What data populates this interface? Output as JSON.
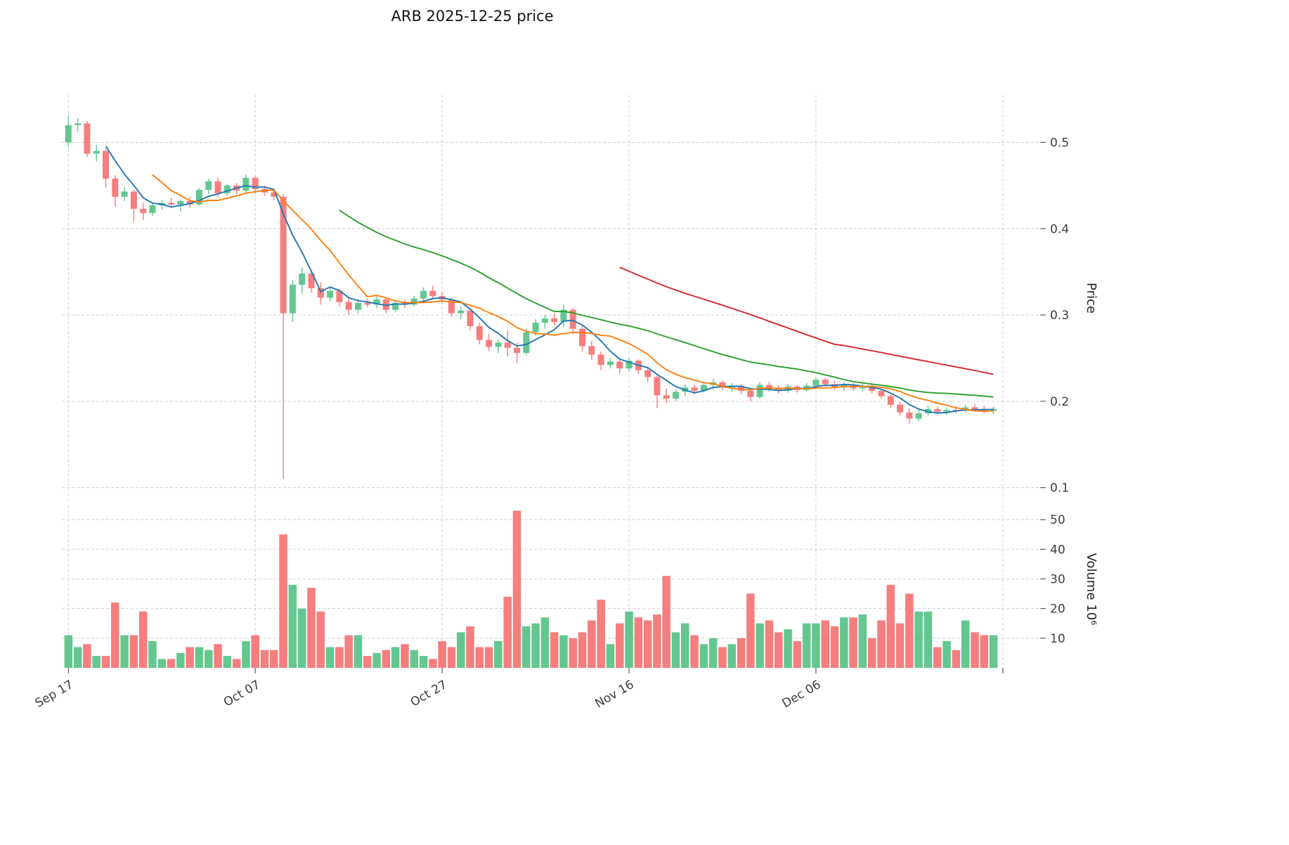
{
  "title": "ARB  2025-12-25  price",
  "colors": {
    "up": "#63c78f",
    "down": "#f57e7e",
    "ma_lines": [
      "#1f77b4",
      "#ff7f0e",
      "#2ca02c",
      "#d62728"
    ],
    "grid": "#cfcfcf"
  },
  "chart_data": {
    "type": "candlestick",
    "title": "ARB  2025-12-25  price",
    "ylabel": "Price",
    "ylabel_volume": "Volume  10⁶",
    "legend": "none",
    "grid": "dashed",
    "price_ylim": [
      0.085,
      0.555
    ],
    "price_ticks": [
      0.1,
      0.2,
      0.3,
      0.4,
      0.5
    ],
    "volume_ylim": [
      0,
      55
    ],
    "volume_ticks": [
      10,
      20,
      30,
      40,
      50
    ],
    "volume_unit": "millions",
    "x_tick_labels": [
      "Sep 17",
      "Oct 07",
      "Oct 27",
      "Nov 16",
      "Dec 06",
      ""
    ],
    "x_tick_indices": [
      0,
      20,
      40,
      60,
      80,
      100
    ],
    "ma_windows": [
      5,
      10,
      30,
      60
    ],
    "open": [
      0.5,
      0.52,
      0.522,
      0.487,
      0.49,
      0.458,
      0.437,
      0.443,
      0.423,
      0.418,
      0.427,
      0.43,
      0.428,
      0.432,
      0.428,
      0.445,
      0.455,
      0.441,
      0.45,
      0.444,
      0.459,
      0.446,
      0.442,
      0.437,
      0.302,
      0.335,
      0.348,
      0.331,
      0.32,
      0.328,
      0.315,
      0.306,
      0.314,
      0.312,
      0.318,
      0.306,
      0.314,
      0.312,
      0.319,
      0.328,
      0.322,
      0.318,
      0.302,
      0.305,
      0.287,
      0.271,
      0.263,
      0.268,
      0.262,
      0.256,
      0.28,
      0.291,
      0.296,
      0.292,
      0.306,
      0.284,
      0.264,
      0.254,
      0.242,
      0.246,
      0.238,
      0.247,
      0.236,
      0.228,
      0.207,
      0.203,
      0.211,
      0.216,
      0.212,
      0.219,
      0.222,
      0.216,
      0.218,
      0.212,
      0.205,
      0.219,
      0.214,
      0.212,
      0.217,
      0.213,
      0.218,
      0.225,
      0.22,
      0.216,
      0.219,
      0.215,
      0.218,
      0.212,
      0.206,
      0.196,
      0.187,
      0.18,
      0.186,
      0.191,
      0.188,
      0.19,
      0.189,
      0.193,
      0.191,
      0.189
    ],
    "high": [
      0.53,
      0.528,
      0.525,
      0.497,
      0.492,
      0.462,
      0.448,
      0.445,
      0.43,
      0.43,
      0.433,
      0.436,
      0.434,
      0.437,
      0.447,
      0.458,
      0.459,
      0.452,
      0.453,
      0.463,
      0.461,
      0.45,
      0.446,
      0.44,
      0.34,
      0.355,
      0.352,
      0.338,
      0.332,
      0.33,
      0.32,
      0.318,
      0.319,
      0.322,
      0.321,
      0.317,
      0.318,
      0.322,
      0.332,
      0.334,
      0.327,
      0.32,
      0.31,
      0.307,
      0.291,
      0.278,
      0.272,
      0.282,
      0.268,
      0.284,
      0.295,
      0.3,
      0.302,
      0.312,
      0.308,
      0.288,
      0.27,
      0.258,
      0.25,
      0.248,
      0.25,
      0.249,
      0.24,
      0.23,
      0.215,
      0.214,
      0.22,
      0.219,
      0.222,
      0.226,
      0.224,
      0.221,
      0.22,
      0.214,
      0.222,
      0.223,
      0.219,
      0.22,
      0.219,
      0.221,
      0.228,
      0.227,
      0.224,
      0.222,
      0.221,
      0.221,
      0.219,
      0.214,
      0.208,
      0.199,
      0.192,
      0.19,
      0.195,
      0.194,
      0.193,
      0.194,
      0.196,
      0.197,
      0.195,
      0.194
    ],
    "low": [
      0.495,
      0.512,
      0.483,
      0.478,
      0.448,
      0.425,
      0.432,
      0.408,
      0.41,
      0.415,
      0.422,
      0.425,
      0.42,
      0.424,
      0.427,
      0.44,
      0.437,
      0.438,
      0.44,
      0.442,
      0.441,
      0.438,
      0.433,
      0.11,
      0.292,
      0.325,
      0.326,
      0.312,
      0.316,
      0.31,
      0.3,
      0.302,
      0.309,
      0.308,
      0.302,
      0.303,
      0.308,
      0.31,
      0.315,
      0.318,
      0.314,
      0.298,
      0.295,
      0.282,
      0.266,
      0.258,
      0.256,
      0.252,
      0.244,
      0.253,
      0.276,
      0.284,
      0.288,
      0.286,
      0.278,
      0.258,
      0.248,
      0.236,
      0.238,
      0.232,
      0.235,
      0.232,
      0.222,
      0.192,
      0.198,
      0.2,
      0.206,
      0.208,
      0.21,
      0.214,
      0.213,
      0.211,
      0.208,
      0.2,
      0.203,
      0.211,
      0.209,
      0.21,
      0.21,
      0.211,
      0.215,
      0.217,
      0.213,
      0.212,
      0.212,
      0.211,
      0.209,
      0.203,
      0.192,
      0.183,
      0.174,
      0.177,
      0.183,
      0.185,
      0.184,
      0.186,
      0.187,
      0.188,
      0.186,
      0.185
    ],
    "close": [
      0.52,
      0.522,
      0.487,
      0.49,
      0.458,
      0.437,
      0.443,
      0.423,
      0.418,
      0.427,
      0.43,
      0.428,
      0.432,
      0.428,
      0.445,
      0.455,
      0.441,
      0.45,
      0.444,
      0.459,
      0.446,
      0.442,
      0.437,
      0.302,
      0.335,
      0.348,
      0.331,
      0.32,
      0.328,
      0.315,
      0.306,
      0.314,
      0.312,
      0.318,
      0.306,
      0.314,
      0.312,
      0.319,
      0.328,
      0.322,
      0.318,
      0.302,
      0.305,
      0.287,
      0.271,
      0.263,
      0.268,
      0.262,
      0.256,
      0.28,
      0.291,
      0.296,
      0.292,
      0.306,
      0.284,
      0.264,
      0.254,
      0.242,
      0.246,
      0.238,
      0.247,
      0.236,
      0.228,
      0.207,
      0.203,
      0.211,
      0.216,
      0.212,
      0.219,
      0.222,
      0.216,
      0.218,
      0.212,
      0.205,
      0.219,
      0.214,
      0.212,
      0.217,
      0.213,
      0.218,
      0.225,
      0.22,
      0.216,
      0.219,
      0.215,
      0.218,
      0.212,
      0.206,
      0.196,
      0.187,
      0.18,
      0.186,
      0.191,
      0.188,
      0.19,
      0.189,
      0.193,
      0.191,
      0.189,
      0.191
    ],
    "volume": [
      11,
      7,
      8,
      4,
      4,
      22,
      11,
      11,
      19,
      9,
      3,
      3,
      5,
      7,
      7,
      6,
      8,
      4,
      3,
      9,
      11,
      6,
      6,
      45,
      28,
      20,
      27,
      19,
      7,
      7,
      11,
      11,
      4,
      5,
      6,
      7,
      8,
      6,
      4,
      3,
      9,
      7,
      12,
      14,
      7,
      7,
      9,
      24,
      53,
      14,
      15,
      17,
      12,
      11,
      10,
      12,
      16,
      23,
      8,
      15,
      19,
      17,
      16,
      18,
      31,
      12,
      15,
      11,
      8,
      10,
      7,
      8,
      10,
      25,
      15,
      16,
      12,
      13,
      9,
      15,
      15,
      16,
      14,
      17,
      17,
      18,
      10,
      16,
      28,
      15,
      25,
      19,
      19,
      7,
      9,
      6,
      16,
      12,
      11,
      11
    ]
  }
}
